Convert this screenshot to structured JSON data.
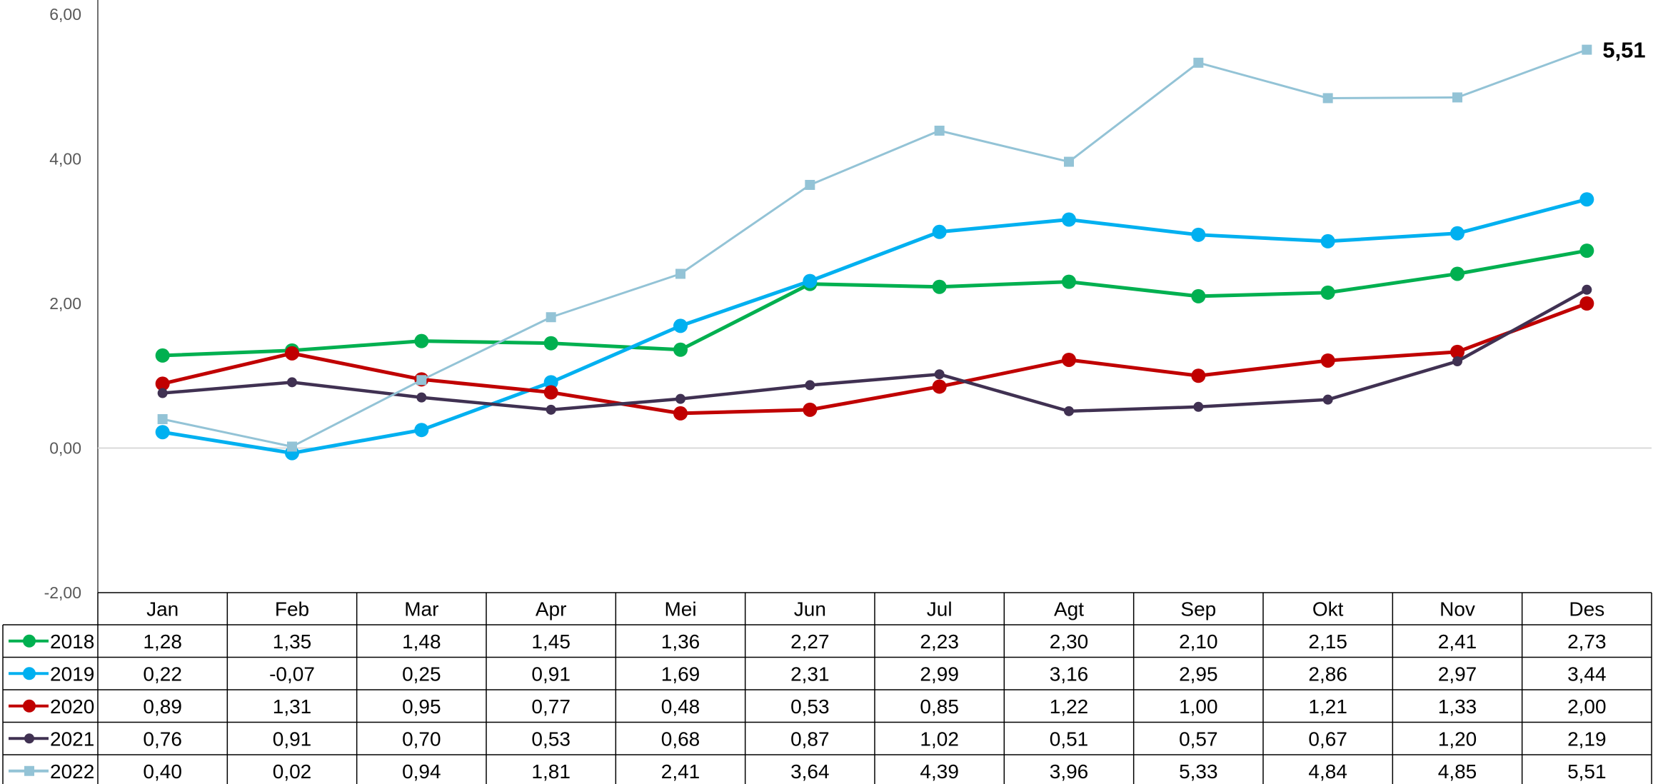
{
  "chart_data": {
    "type": "line",
    "title": "",
    "xlabel": "",
    "ylabel": "",
    "categories": [
      "Jan",
      "Feb",
      "Mar",
      "Apr",
      "Mei",
      "Jun",
      "Jul",
      "Agt",
      "Sep",
      "Okt",
      "Nov",
      "Des"
    ],
    "ylim": [
      -2,
      6
    ],
    "y_ticks": [
      "6,00",
      "4,00",
      "2,00",
      "0,00",
      "-2,00"
    ],
    "y_tick_values": [
      6,
      4,
      2,
      0,
      -2
    ],
    "grid": false,
    "zero_line": true,
    "legend": "data-table-rows",
    "series": [
      {
        "name": "2018",
        "color": "#00B050",
        "marker": "circle",
        "values": [
          1.28,
          1.35,
          1.48,
          1.45,
          1.36,
          2.27,
          2.23,
          2.3,
          2.1,
          2.15,
          2.41,
          2.73
        ],
        "labels": [
          "1,28",
          "1,35",
          "1,48",
          "1,45",
          "1,36",
          "2,27",
          "2,23",
          "2,30",
          "2,10",
          "2,15",
          "2,41",
          "2,73"
        ]
      },
      {
        "name": "2019",
        "color": "#00B0F0",
        "marker": "circle",
        "values": [
          0.22,
          -0.07,
          0.25,
          0.91,
          1.69,
          2.31,
          2.99,
          3.16,
          2.95,
          2.86,
          2.97,
          3.44
        ],
        "labels": [
          "0,22",
          "-0,07",
          "0,25",
          "0,91",
          "1,69",
          "2,31",
          "2,99",
          "3,16",
          "2,95",
          "2,86",
          "2,97",
          "3,44"
        ]
      },
      {
        "name": "2020",
        "color": "#C00000",
        "marker": "circle",
        "values": [
          0.89,
          1.31,
          0.95,
          0.77,
          0.48,
          0.53,
          0.85,
          1.22,
          1.0,
          1.21,
          1.33,
          2.0
        ],
        "labels": [
          "0,89",
          "1,31",
          "0,95",
          "0,77",
          "0,48",
          "0,53",
          "0,85",
          "1,22",
          "1,00",
          "1,21",
          "1,33",
          "2,00"
        ]
      },
      {
        "name": "2021",
        "color": "#403152",
        "marker": "circle-small",
        "values": [
          0.76,
          0.91,
          0.7,
          0.53,
          0.68,
          0.87,
          1.02,
          0.51,
          0.57,
          0.67,
          1.2,
          2.19
        ],
        "labels": [
          "0,76",
          "0,91",
          "0,70",
          "0,53",
          "0,68",
          "0,87",
          "1,02",
          "0,51",
          "0,57",
          "0,67",
          "1,20",
          "2,19"
        ]
      },
      {
        "name": "2022",
        "color": "#93C3D6",
        "marker": "square",
        "values": [
          0.4,
          0.02,
          0.94,
          1.81,
          2.41,
          3.64,
          4.39,
          3.96,
          5.33,
          4.84,
          4.85,
          5.51
        ],
        "labels": [
          "0,40",
          "0,02",
          "0,94",
          "1,81",
          "2,41",
          "3,64",
          "4,39",
          "3,96",
          "5,33",
          "4,84",
          "4,85",
          "5,51"
        ],
        "end_label": "5,51"
      }
    ]
  }
}
